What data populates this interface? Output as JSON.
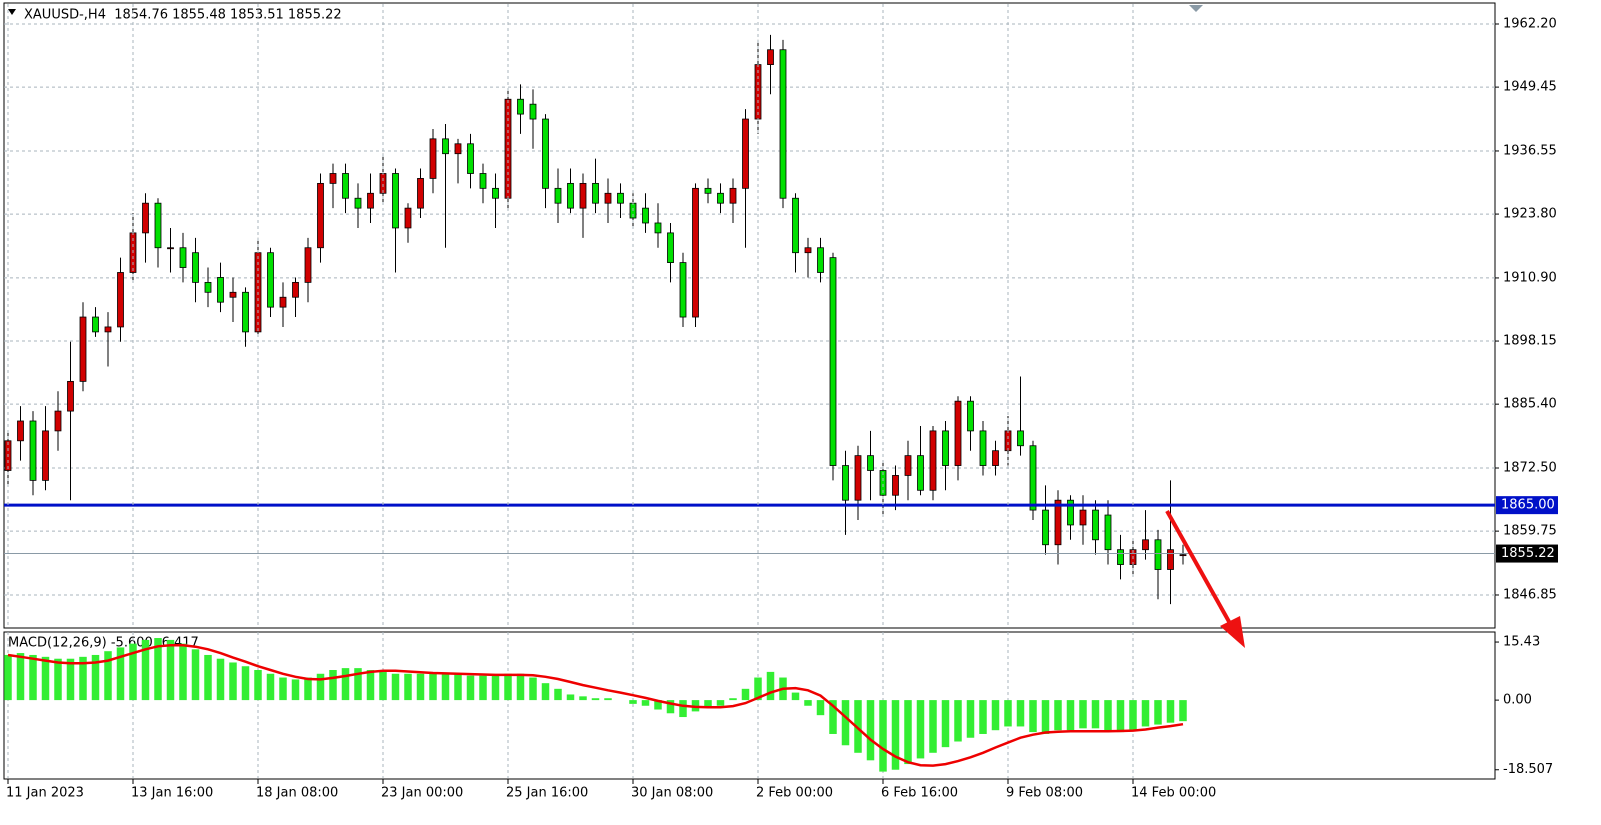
{
  "chart_data": [
    {
      "type": "candlestick",
      "title": "XAUUSD-,H4  1854.76 1855.48 1853.51 1855.22",
      "up_color": "#d00000",
      "down_color": "#00e000",
      "ylim": [
        1840.18,
        1966.24
      ],
      "yticks": [
        {
          "value": 1962.2,
          "label": "1962.20"
        },
        1949.45,
        1936.55,
        {
          "value": 1923.8,
          "label": "1923.80"
        },
        {
          "value": 1910.9,
          "label": "1910.90"
        },
        1898.15,
        {
          "value": 1885.4,
          "label": "1885.40"
        },
        {
          "value": 1872.5,
          "label": "1872.50"
        },
        1859.75,
        1846.85
      ],
      "grid": true,
      "levels": [
        {
          "value": 1865,
          "label": "1865.00",
          "color": "#0010c8"
        },
        {
          "value": 1855.22,
          "color": "#8a9aa6"
        }
      ],
      "ohlc": [
        [
          1872,
          1880,
          1869,
          1878
        ],
        [
          1878,
          1885,
          1874,
          1882
        ],
        [
          1882,
          1884,
          1867,
          1870
        ],
        [
          1870,
          1885,
          1868,
          1880
        ],
        [
          1880,
          1888,
          1876,
          1884
        ],
        [
          1884,
          1898,
          1866,
          1890
        ],
        [
          1890,
          1906,
          1888,
          1903
        ],
        [
          1903,
          1905,
          1899,
          1900
        ],
        [
          1900,
          1904,
          1893,
          1901
        ],
        [
          1901,
          1915,
          1898,
          1912
        ],
        [
          1912,
          1924,
          1910,
          1920
        ],
        [
          1920,
          1928,
          1914,
          1926
        ],
        [
          1926,
          1927,
          1913,
          1917
        ],
        [
          1917,
          1921,
          1912,
          1917
        ],
        [
          1917,
          1920,
          1910,
          1913
        ],
        [
          1916,
          1919,
          1906,
          1910
        ],
        [
          1910,
          1913,
          1905,
          1908
        ],
        [
          1911,
          1914,
          1904,
          1906
        ],
        [
          1907,
          1911,
          1902,
          1908
        ],
        [
          1908,
          1909,
          1897,
          1900
        ],
        [
          1900,
          1919,
          1899,
          1916
        ],
        [
          1916,
          1917,
          1903,
          1905
        ],
        [
          1905,
          1910,
          1901,
          1907
        ],
        [
          1907,
          1911,
          1903,
          1910
        ],
        [
          1910,
          1919,
          1906,
          1917
        ],
        [
          1917,
          1932,
          1914,
          1930
        ],
        [
          1930,
          1934,
          1925,
          1932
        ],
        [
          1932,
          1934,
          1924,
          1927
        ],
        [
          1927,
          1930,
          1921,
          1925
        ],
        [
          1925,
          1932,
          1922,
          1928
        ],
        [
          1928,
          1936,
          1926,
          1932
        ],
        [
          1932,
          1933,
          1912,
          1921
        ],
        [
          1921,
          1926,
          1918,
          1925
        ],
        [
          1925,
          1933,
          1923,
          1931
        ],
        [
          1931,
          1941,
          1928,
          1939
        ],
        [
          1939,
          1942,
          1917,
          1936
        ],
        [
          1936,
          1939,
          1930,
          1938
        ],
        [
          1938,
          1940,
          1929,
          1932
        ],
        [
          1932,
          1934,
          1926,
          1929
        ],
        [
          1929,
          1932,
          1921,
          1927
        ],
        [
          1927,
          1949,
          1925,
          1947
        ],
        [
          1947,
          1950,
          1940,
          1944
        ],
        [
          1946,
          1949,
          1937,
          1943
        ],
        [
          1943,
          1944,
          1925,
          1929
        ],
        [
          1929,
          1933,
          1922,
          1926
        ],
        [
          1930,
          1933,
          1924,
          1925
        ],
        [
          1925,
          1932,
          1919,
          1930
        ],
        [
          1930,
          1935,
          1924,
          1926
        ],
        [
          1926,
          1931,
          1922,
          1928
        ],
        [
          1928,
          1930,
          1923,
          1926
        ],
        [
          1926,
          1928,
          1921,
          1923
        ],
        [
          1925,
          1928,
          1920,
          1922
        ],
        [
          1922,
          1926,
          1917,
          1920
        ],
        [
          1920,
          1922,
          1910,
          1914
        ],
        [
          1914,
          1916,
          1901,
          1903
        ],
        [
          1903,
          1930,
          1901,
          1929
        ],
        [
          1929,
          1931,
          1926,
          1928
        ],
        [
          1928,
          1930,
          1924,
          1926
        ],
        [
          1926,
          1931,
          1922,
          1929
        ],
        [
          1929,
          1945,
          1917,
          1943
        ],
        [
          1943,
          1959,
          1940,
          1954
        ],
        [
          1954,
          1960,
          1948,
          1957
        ],
        [
          1957,
          1959,
          1925,
          1927
        ],
        [
          1927,
          1928,
          1912,
          1916
        ],
        [
          1916,
          1919,
          1911,
          1917
        ],
        [
          1917,
          1919,
          1910,
          1912
        ],
        [
          1915,
          1916,
          1870,
          1873
        ],
        [
          1873,
          1876,
          1859,
          1866
        ],
        [
          1866,
          1877,
          1862,
          1875
        ],
        [
          1875,
          1880,
          1866,
          1872
        ],
        [
          1872,
          1874,
          1863,
          1867
        ],
        [
          1867,
          1873,
          1864,
          1871
        ],
        [
          1871,
          1878,
          1866,
          1875
        ],
        [
          1875,
          1881,
          1867,
          1868
        ],
        [
          1868,
          1881,
          1866,
          1880
        ],
        [
          1880,
          1882,
          1868,
          1873
        ],
        [
          1873,
          1887,
          1870,
          1886
        ],
        [
          1886,
          1887,
          1876,
          1880
        ],
        [
          1880,
          1882,
          1871,
          1873
        ],
        [
          1873,
          1878,
          1871,
          1876
        ],
        [
          1876,
          1883,
          1873,
          1880
        ],
        [
          1880,
          1891,
          1875,
          1877
        ],
        [
          1877,
          1878,
          1862,
          1864
        ],
        [
          1864,
          1869,
          1855,
          1857
        ],
        [
          1857,
          1868,
          1853,
          1866
        ],
        [
          1866,
          1867,
          1858,
          1861
        ],
        [
          1861,
          1867,
          1857,
          1864
        ],
        [
          1864,
          1866,
          1855,
          1858
        ],
        [
          1863,
          1866,
          1853,
          1856
        ],
        [
          1856,
          1859,
          1850,
          1853
        ],
        [
          1853,
          1858,
          1851,
          1856
        ],
        [
          1856,
          1864,
          1854,
          1858
        ],
        [
          1858,
          1860,
          1846,
          1852
        ],
        [
          1852,
          1870,
          1845,
          1856
        ],
        [
          1855,
          1857,
          1853,
          1855
        ]
      ]
    },
    {
      "type": "macd",
      "label": "MACD(12,26,9) -5.600 -6.417",
      "ylim": [
        -20.7,
        18.1
      ],
      "yticks": [
        15.43,
        {
          "value": 0,
          "label": "0.00"
        },
        -18.507
      ],
      "xticks": [
        {
          "value": 0,
          "label": "11 Jan 2023"
        },
        {
          "value": 10,
          "label": "13 Jan 16:00"
        },
        {
          "value": 20,
          "label": "18 Jan 08:00"
        },
        {
          "value": 30,
          "label": "23 Jan 00:00"
        },
        {
          "value": 40,
          "label": "25 Jan 16:00"
        },
        {
          "value": 50,
          "label": "30 Jan 08:00"
        },
        {
          "value": 60,
          "label": "2 Feb 00:00"
        },
        {
          "value": 70,
          "label": "6 Feb 16:00"
        },
        {
          "value": 80,
          "label": "9 Feb 08:00"
        },
        {
          "value": 90,
          "label": "14 Feb 00:00"
        }
      ],
      "histogram": {
        "color": "#33ee33",
        "values": [
          12,
          12.5,
          12,
          11.5,
          11,
          11,
          11.5,
          12,
          13,
          14,
          15,
          16,
          16.5,
          16,
          15,
          13.5,
          12,
          11,
          10,
          9,
          8,
          7,
          6,
          5.5,
          6,
          7,
          8,
          8.5,
          8.5,
          8,
          7.5,
          7,
          7,
          7,
          7,
          7,
          7,
          6.5,
          6.5,
          6.5,
          7,
          7,
          6,
          4.5,
          3,
          1.5,
          1,
          0.5,
          0.5,
          0,
          -1,
          -1.5,
          -2.5,
          -3.5,
          -4.5,
          -3,
          -2,
          -1.5,
          0.5,
          3,
          6,
          7.5,
          6,
          2,
          -1.5,
          -4,
          -9,
          -12,
          -14,
          -16,
          -19,
          -18.5,
          -17,
          -15.5,
          -14,
          -12.5,
          -11,
          -10,
          -9,
          -8,
          -7,
          -7,
          -8.5,
          -9,
          -8,
          -8,
          -7.5,
          -7.5,
          -8,
          -8.5,
          -8,
          -7,
          -6.5,
          -6,
          -5.6
        ]
      },
      "signal": {
        "color": "#ee0000",
        "values": [
          12,
          11.5,
          11,
          10.5,
          10,
          9.8,
          9.8,
          10,
          10.5,
          11.5,
          12.5,
          13.5,
          14.3,
          14.6,
          14.6,
          14.2,
          13.5,
          12.5,
          11.3,
          10.2,
          9,
          8,
          7,
          6.2,
          5.6,
          5.5,
          5.9,
          6.4,
          7,
          7.5,
          7.8,
          7.8,
          7.6,
          7.4,
          7.2,
          7.1,
          7,
          6.9,
          6.8,
          6.7,
          6.7,
          6.7,
          6.6,
          6.2,
          5.6,
          4.8,
          4,
          3.3,
          2.6,
          2,
          1.3,
          0.6,
          -0.2,
          -0.9,
          -1.5,
          -1.8,
          -1.9,
          -1.9,
          -1.6,
          -0.8,
          0.6,
          2,
          3,
          3.2,
          2.6,
          1.2,
          -1.5,
          -4.5,
          -7.5,
          -10.5,
          -13,
          -15,
          -16.5,
          -17.3,
          -17.4,
          -17,
          -16.2,
          -15.2,
          -14,
          -12.6,
          -11.3,
          -10,
          -9.2,
          -8.6,
          -8.4,
          -8.3,
          -8.3,
          -8.3,
          -8.3,
          -8.2,
          -8.1,
          -7.8,
          -7.3,
          -6.9,
          -6.4
        ]
      }
    }
  ]
}
